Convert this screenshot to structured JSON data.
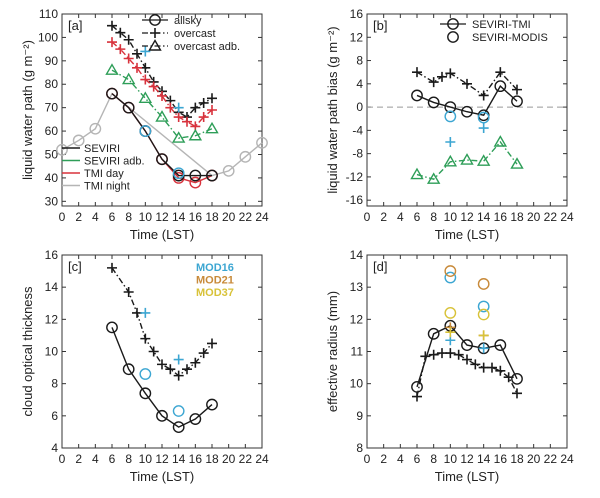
{
  "colors": {
    "black": "#1a1a1a",
    "green": "#2e9e58",
    "red": "#d8323c",
    "gray": "#b5b5b5",
    "blue": "#3ca6d2",
    "orange": "#c88a3a",
    "yellow": "#d8c238",
    "zero_line": "#999999"
  },
  "chart_data": [
    {
      "id": "a",
      "panel_label": "[a]",
      "type": "line",
      "xlabel": "Time (LST)",
      "ylabel": "liquid water path (g m⁻²)",
      "xlim": [
        0,
        24
      ],
      "ylim": [
        28,
        110
      ],
      "xticks": [
        0,
        2,
        4,
        6,
        8,
        10,
        12,
        14,
        16,
        18,
        20,
        22,
        24
      ],
      "yticks": [
        30,
        40,
        50,
        60,
        70,
        80,
        90,
        100,
        110
      ],
      "legend_markers": [
        {
          "label": "allsky",
          "marker": "circle",
          "line": "solid",
          "color": "black"
        },
        {
          "label": "overcast",
          "marker": "plus",
          "line": "dashed",
          "color": "black"
        },
        {
          "label": "overcast adb.",
          "marker": "triangle",
          "line": "dashed",
          "color": "black"
        }
      ],
      "legend_colors": [
        {
          "label": "SEVIRI",
          "color": "black"
        },
        {
          "label": "SEVIRI adb.",
          "color": "green"
        },
        {
          "label": "TMI day",
          "color": "red"
        },
        {
          "label": "TMI night",
          "color": "gray"
        }
      ],
      "series": [
        {
          "name": "TMI night allsky",
          "color": "gray",
          "marker": "circle",
          "line": "solid",
          "x": [
            0,
            2,
            4,
            6,
            18,
            20,
            22,
            24
          ],
          "y": [
            52,
            56,
            61,
            76,
            41,
            43,
            49,
            55
          ]
        },
        {
          "name": "TMI day allsky",
          "color": "red",
          "marker": "circle",
          "line": "solid",
          "x": [
            6,
            8,
            10,
            12,
            14,
            16,
            18
          ],
          "y": [
            76,
            70,
            60,
            48,
            40,
            38,
            41
          ]
        },
        {
          "name": "SEVIRI allsky",
          "color": "black",
          "marker": "circle",
          "line": "solid",
          "x": [
            6,
            8,
            10,
            12,
            14,
            16,
            18
          ],
          "y": [
            76,
            70,
            60,
            48,
            41,
            41,
            41
          ]
        },
        {
          "name": "SEVIRI overcast",
          "color": "black",
          "marker": "plus",
          "line": "dashed",
          "x": [
            6,
            7,
            8,
            9,
            10,
            11,
            12,
            13,
            14,
            15,
            16,
            17,
            18
          ],
          "y": [
            105,
            102,
            99,
            93,
            87,
            81,
            77,
            73,
            68,
            66,
            70,
            72,
            74
          ]
        },
        {
          "name": "TMI day overcast",
          "color": "red",
          "marker": "plus",
          "line": "dashed",
          "x": [
            6,
            7,
            8,
            9,
            10,
            11,
            12,
            13,
            14,
            15,
            16,
            17,
            18
          ],
          "y": [
            98,
            95,
            91,
            87,
            82,
            79,
            75,
            70,
            66,
            64,
            62,
            66,
            69
          ]
        },
        {
          "name": "SEVIRI adb. overcast",
          "color": "green",
          "marker": "triangle",
          "line": "dashed",
          "x": [
            6,
            8,
            10,
            12,
            14,
            16,
            18
          ],
          "y": [
            86,
            82,
            74,
            66,
            57,
            58,
            61
          ]
        },
        {
          "name": "MODIS allsky",
          "color": "blue",
          "marker": "circle",
          "line": "none",
          "x": [
            10,
            14
          ],
          "y": [
            60,
            42
          ]
        },
        {
          "name": "MODIS overcast",
          "color": "blue",
          "marker": "plus",
          "line": "none",
          "x": [
            10,
            14
          ],
          "y": [
            94,
            70
          ]
        }
      ]
    },
    {
      "id": "b",
      "panel_label": "[b]",
      "type": "line",
      "xlabel": "Time (LST)",
      "ylabel": "liquid water path bias (g m⁻²)",
      "xlim": [
        0,
        24
      ],
      "ylim": [
        -17,
        16
      ],
      "xticks": [
        0,
        2,
        4,
        6,
        8,
        10,
        12,
        14,
        16,
        18,
        20,
        22,
        24
      ],
      "yticks": [
        -16,
        -12,
        -8,
        -4,
        0,
        4,
        8,
        12,
        16
      ],
      "zero_line": true,
      "legend_markers": [
        {
          "label": "SEVIRI-TMI",
          "marker": "circle",
          "line": "solid",
          "color": "black"
        },
        {
          "label": "SEVIRI-MODIS",
          "marker": "circle",
          "line": "none",
          "color": "black"
        }
      ],
      "series": [
        {
          "name": "SEVIRI-TMI allsky",
          "color": "black",
          "marker": "circle",
          "line": "solid",
          "x": [
            6,
            8,
            10,
            12,
            14,
            16,
            18
          ],
          "y": [
            2,
            0.8,
            0,
            -0.8,
            -1.4,
            3.6,
            1
          ]
        },
        {
          "name": "SEVIRI-TMI overcast",
          "color": "black",
          "marker": "plus",
          "line": "dashed",
          "x": [
            6,
            8,
            9,
            10,
            12,
            14,
            16,
            18
          ],
          "y": [
            6,
            4.3,
            5.2,
            5.8,
            4,
            2,
            6,
            3
          ]
        },
        {
          "name": "SEVIRI adb.-TMI overcast",
          "color": "green",
          "marker": "triangle",
          "line": "dashed",
          "x": [
            6,
            8,
            10,
            12,
            14,
            16,
            18
          ],
          "y": [
            -11.6,
            -12.4,
            -9.4,
            -9.1,
            -9.3,
            -6,
            -9.8
          ]
        },
        {
          "name": "SEVIRI-MODIS allsky",
          "color": "blue",
          "marker": "circle",
          "line": "none",
          "x": [
            10,
            14
          ],
          "y": [
            -1.6,
            -1.8
          ]
        },
        {
          "name": "SEVIRI-MODIS overcast",
          "color": "blue",
          "marker": "plus",
          "line": "none",
          "x": [
            10,
            14
          ],
          "y": [
            -6,
            -3.6
          ]
        }
      ]
    },
    {
      "id": "c",
      "panel_label": "[c]",
      "type": "line",
      "xlabel": "Time (LST)",
      "ylabel": "cloud optical thickness",
      "xlim": [
        0,
        24
      ],
      "ylim": [
        4,
        16
      ],
      "xticks": [
        0,
        2,
        4,
        6,
        8,
        10,
        12,
        14,
        16,
        18,
        20,
        22,
        24
      ],
      "yticks": [
        4,
        6,
        8,
        10,
        12,
        14,
        16
      ],
      "legend_colors": [
        {
          "label": "MOD16",
          "color": "blue"
        },
        {
          "label": "MOD21",
          "color": "orange"
        },
        {
          "label": "MOD37",
          "color": "yellow"
        }
      ],
      "series": [
        {
          "name": "SEVIRI allsky",
          "color": "black",
          "marker": "circle",
          "line": "solid",
          "x": [
            6,
            8,
            10,
            12,
            14,
            16,
            18
          ],
          "y": [
            11.5,
            8.9,
            7.4,
            6.0,
            5.3,
            5.8,
            6.7
          ]
        },
        {
          "name": "SEVIRI overcast",
          "color": "black",
          "marker": "plus",
          "line": "dashed",
          "x": [
            6,
            8,
            9,
            10,
            11,
            12,
            13,
            14,
            15,
            16,
            17,
            18
          ],
          "y": [
            15.2,
            13.7,
            12.4,
            10.8,
            10.0,
            9.2,
            8.9,
            8.5,
            8.9,
            9.3,
            9.9,
            10.5
          ]
        },
        {
          "name": "MOD16 allsky",
          "color": "blue",
          "marker": "circle",
          "line": "none",
          "x": [
            10,
            14
          ],
          "y": [
            8.6,
            6.3
          ]
        },
        {
          "name": "MOD16 overcast",
          "color": "blue",
          "marker": "plus",
          "line": "none",
          "x": [
            10,
            14
          ],
          "y": [
            12.4,
            9.5
          ]
        }
      ]
    },
    {
      "id": "d",
      "panel_label": "[d]",
      "type": "line",
      "xlabel": "Time (LST)",
      "ylabel": "effective radius (mm)",
      "xlim": [
        0,
        24
      ],
      "ylim": [
        8,
        14
      ],
      "xticks": [
        0,
        2,
        4,
        6,
        8,
        10,
        12,
        14,
        16,
        18,
        20,
        22,
        24
      ],
      "yticks": [
        8,
        9,
        10,
        11,
        12,
        13,
        14
      ],
      "series": [
        {
          "name": "SEVIRI allsky",
          "color": "black",
          "marker": "circle",
          "line": "solid",
          "x": [
            6,
            8,
            10,
            12,
            14,
            16,
            18
          ],
          "y": [
            9.9,
            11.55,
            11.8,
            11.2,
            11.1,
            11.2,
            10.15
          ]
        },
        {
          "name": "SEVIRI overcast",
          "color": "black",
          "marker": "plus",
          "line": "dashed",
          "x": [
            6,
            7,
            8,
            9,
            10,
            11,
            12,
            13,
            14,
            15,
            16,
            17,
            18
          ],
          "y": [
            9.6,
            10.85,
            10.9,
            10.95,
            10.95,
            10.9,
            10.75,
            10.6,
            10.5,
            10.5,
            10.4,
            10.2,
            9.7
          ]
        },
        {
          "name": "MOD16 allsky",
          "color": "blue",
          "marker": "circle",
          "line": "none",
          "x": [
            10,
            14
          ],
          "y": [
            13.3,
            12.4
          ]
        },
        {
          "name": "MOD21 allsky",
          "color": "orange",
          "marker": "circle",
          "line": "none",
          "x": [
            10,
            14
          ],
          "y": [
            13.5,
            13.1
          ]
        },
        {
          "name": "MOD37 allsky",
          "color": "yellow",
          "marker": "circle",
          "line": "none",
          "x": [
            10,
            14
          ],
          "y": [
            12.2,
            12.15
          ]
        },
        {
          "name": "MOD16 overcast",
          "color": "blue",
          "marker": "plus",
          "line": "none",
          "x": [
            10,
            14
          ],
          "y": [
            11.35,
            11.1
          ]
        },
        {
          "name": "MOD21 overcast",
          "color": "orange",
          "marker": "plus",
          "line": "none",
          "x": [
            10,
            14
          ],
          "y": [
            11.75,
            11.5
          ]
        },
        {
          "name": "MOD37 overcast",
          "color": "yellow",
          "marker": "plus",
          "line": "none",
          "x": [
            10,
            14
          ],
          "y": [
            11.6,
            11.5
          ]
        }
      ]
    }
  ]
}
